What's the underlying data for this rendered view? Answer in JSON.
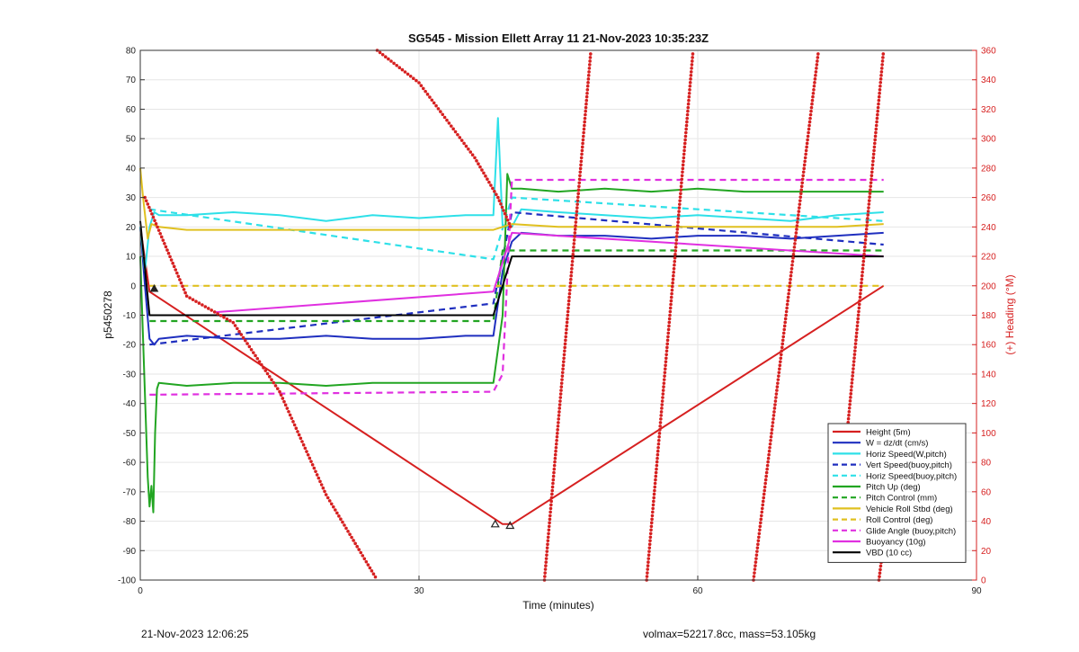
{
  "chart_data": {
    "type": "line",
    "title": "SG545 - Mission Ellett Array 11 21-Nov-2023 10:35:23Z",
    "xlabel": "Time (minutes)",
    "ylabel_left": "p5450278",
    "ylabel_right": "(+) Heading (°M)",
    "xlim": [
      0,
      90
    ],
    "ylim_left": [
      -100,
      80
    ],
    "ylim_right": [
      0,
      360
    ],
    "xticks": [
      0,
      30,
      60,
      90
    ],
    "yticks_left": [
      -100,
      -90,
      -80,
      -70,
      -60,
      -50,
      -40,
      -30,
      -20,
      -10,
      0,
      10,
      20,
      30,
      40,
      50,
      60,
      70,
      80
    ],
    "yticks_right": [
      0,
      20,
      40,
      60,
      80,
      100,
      120,
      140,
      160,
      180,
      200,
      220,
      240,
      260,
      280,
      300,
      320,
      340,
      360
    ],
    "grid": true,
    "legend_position": "bottom-right",
    "colors": {
      "red": "#d62020",
      "blue": "#1f2fbf",
      "cyan": "#2ee0e8",
      "green": "#22a522",
      "yellow": "#e0c020",
      "magenta": "#e030e0",
      "black": "#000000"
    },
    "series": [
      {
        "name": "Height (5m)",
        "color": "#d62020",
        "dash": false,
        "axis": "left",
        "x": [
          0,
          1,
          39,
          40,
          80
        ],
        "y": [
          20,
          -2,
          -81,
          -81,
          0
        ]
      },
      {
        "name": "W = dz/dt (cm/s)",
        "color": "#1f2fbf",
        "dash": false,
        "axis": "left",
        "x": [
          0,
          0.5,
          1,
          1.5,
          2,
          5,
          10,
          15,
          20,
          25,
          30,
          35,
          38,
          39,
          40,
          41,
          45,
          50,
          55,
          60,
          65,
          70,
          75,
          80
        ],
        "y": [
          20,
          0,
          -18,
          -20,
          -18,
          -17,
          -18,
          -18,
          -17,
          -18,
          -18,
          -17,
          -17,
          5,
          15,
          18,
          17,
          17,
          16,
          17,
          17,
          16,
          17,
          18
        ]
      },
      {
        "name": "Horiz Speed(W,pitch)",
        "color": "#2ee0e8",
        "dash": false,
        "axis": "left",
        "x": [
          0,
          0.5,
          1,
          1.5,
          2,
          5,
          10,
          15,
          20,
          25,
          30,
          35,
          38,
          38.5,
          39,
          40,
          41,
          45,
          50,
          55,
          60,
          65,
          70,
          75,
          80
        ],
        "y": [
          20,
          5,
          20,
          25,
          24,
          24,
          25,
          24,
          22,
          24,
          23,
          24,
          24,
          57,
          20,
          20,
          26,
          25,
          24,
          23,
          24,
          23,
          22,
          24,
          25
        ]
      },
      {
        "name": "Vert Speed(buoy,pitch)",
        "color": "#1f2fbf",
        "dash": true,
        "axis": "left",
        "x": [
          1,
          38,
          40,
          80
        ],
        "y": [
          -20,
          -6,
          25,
          14
        ]
      },
      {
        "name": "Horiz Speed(buoy,pitch)",
        "color": "#2ee0e8",
        "dash": true,
        "axis": "left",
        "x": [
          1,
          38,
          40,
          80
        ],
        "y": [
          26,
          9,
          30,
          22
        ]
      },
      {
        "name": "Pitch Up (deg)",
        "color": "#22a522",
        "dash": false,
        "axis": "left",
        "x": [
          0,
          0.8,
          1,
          1.2,
          1.4,
          1.6,
          1.8,
          2,
          5,
          10,
          15,
          20,
          25,
          30,
          35,
          38,
          39,
          39.5,
          40,
          41,
          45,
          50,
          55,
          60,
          65,
          70,
          75,
          80
        ],
        "y": [
          10,
          -65,
          -75,
          -68,
          -77,
          -50,
          -35,
          -33,
          -34,
          -33,
          -33,
          -34,
          -33,
          -33,
          -33,
          -33,
          -10,
          38,
          33,
          33,
          32,
          33,
          32,
          33,
          32,
          32,
          32,
          32
        ]
      },
      {
        "name": "Pitch Control (mm)",
        "color": "#22a522",
        "dash": true,
        "axis": "left",
        "x": [
          1,
          38,
          39,
          80
        ],
        "y": [
          -12,
          -12,
          12,
          12
        ]
      },
      {
        "name": "Vehicle Roll Stbd (deg)",
        "color": "#e0c020",
        "dash": false,
        "axis": "left",
        "x": [
          0,
          0.3,
          0.8,
          1.2,
          2,
          5,
          10,
          15,
          20,
          25,
          30,
          35,
          38,
          39,
          40,
          45,
          50,
          55,
          60,
          65,
          70,
          75,
          80
        ],
        "y": [
          40,
          30,
          16,
          21,
          20,
          19,
          19,
          19,
          19,
          19,
          19,
          19,
          19,
          20,
          21,
          20,
          20,
          20,
          20,
          20,
          20,
          20,
          21
        ]
      },
      {
        "name": "Roll Control (deg)",
        "color": "#e0c020",
        "dash": true,
        "axis": "left",
        "x": [
          1,
          80
        ],
        "y": [
          0,
          0
        ]
      },
      {
        "name": "Glide Angle (buoy,pitch)",
        "color": "#e030e0",
        "dash": true,
        "axis": "left",
        "x": [
          1,
          38,
          39,
          40,
          80
        ],
        "y": [
          -37,
          -36,
          -30,
          36,
          36
        ]
      },
      {
        "name": "Buoyancy (10g)",
        "color": "#e030e0",
        "dash": false,
        "axis": "left",
        "x": [
          8,
          38,
          40,
          80
        ],
        "y": [
          -9,
          -2,
          18,
          10
        ]
      },
      {
        "name": "VBD (10 cc)",
        "color": "#000000",
        "dash": false,
        "axis": "left",
        "x": [
          0,
          1,
          38,
          40,
          80
        ],
        "y": [
          22,
          -10,
          -10,
          10,
          10
        ]
      },
      {
        "name": "",
        "color": "#d62020",
        "dash": false,
        "dotted": true,
        "axis": "right",
        "x": [
          0.5,
          5,
          10,
          15,
          20,
          25.5
        ],
        "y": [
          260,
          193,
          175,
          128,
          58,
          0
        ]
      },
      {
        "name": "",
        "color": "#d62020",
        "dash": false,
        "dotted": true,
        "axis": "right",
        "x": [
          25.5,
          30,
          36,
          38.5,
          40
        ],
        "y": [
          360,
          338,
          287,
          260,
          238
        ]
      },
      {
        "name": "",
        "color": "#d62020",
        "dotted": true,
        "axis": "right",
        "x": [
          43.5,
          48.5
        ],
        "y": [
          0,
          360
        ]
      },
      {
        "name": "",
        "color": "#d62020",
        "dotted": true,
        "axis": "right",
        "x": [
          54.5,
          59.5
        ],
        "y": [
          0,
          360
        ]
      },
      {
        "name": "",
        "color": "#d62020",
        "dotted": true,
        "axis": "right",
        "x": [
          66,
          73
        ],
        "y": [
          0,
          360
        ]
      },
      {
        "name": "",
        "color": "#d62020",
        "dotted": true,
        "axis": "right",
        "x": [
          76,
          80
        ],
        "y": [
          95,
          360
        ]
      },
      {
        "name": "",
        "color": "#d62020",
        "dotted": true,
        "axis": "right",
        "x": [
          79.5,
          80.5
        ],
        "y": [
          0,
          50
        ]
      }
    ],
    "legend": [
      {
        "label": "Height (5m)",
        "color": "#d62020",
        "dash": false
      },
      {
        "label": "W = dz/dt (cm/s)",
        "color": "#1f2fbf",
        "dash": false
      },
      {
        "label": "Horiz Speed(W,pitch)",
        "color": "#2ee0e8",
        "dash": false
      },
      {
        "label": "Vert Speed(buoy,pitch)",
        "color": "#1f2fbf",
        "dash": true
      },
      {
        "label": "Horiz Speed(buoy,pitch)",
        "color": "#2ee0e8",
        "dash": true
      },
      {
        "label": "Pitch Up (deg)",
        "color": "#22a522",
        "dash": false
      },
      {
        "label": "Pitch Control (mm)",
        "color": "#22a522",
        "dash": true
      },
      {
        "label": "Vehicle Roll Stbd (deg)",
        "color": "#e0c020",
        "dash": false
      },
      {
        "label": "Roll Control (deg)",
        "color": "#e0c020",
        "dash": true
      },
      {
        "label": "Glide Angle (buoy,pitch)",
        "color": "#e030e0",
        "dash": true
      },
      {
        "label": "Buoyancy (10g)",
        "color": "#e030e0",
        "dash": false
      },
      {
        "label": "VBD (10 cc)",
        "color": "#000000",
        "dash": false
      }
    ]
  },
  "footer": {
    "left": "21-Nov-2023 12:06:25",
    "right": "volmax=52217.8cc, mass=53.105kg"
  }
}
